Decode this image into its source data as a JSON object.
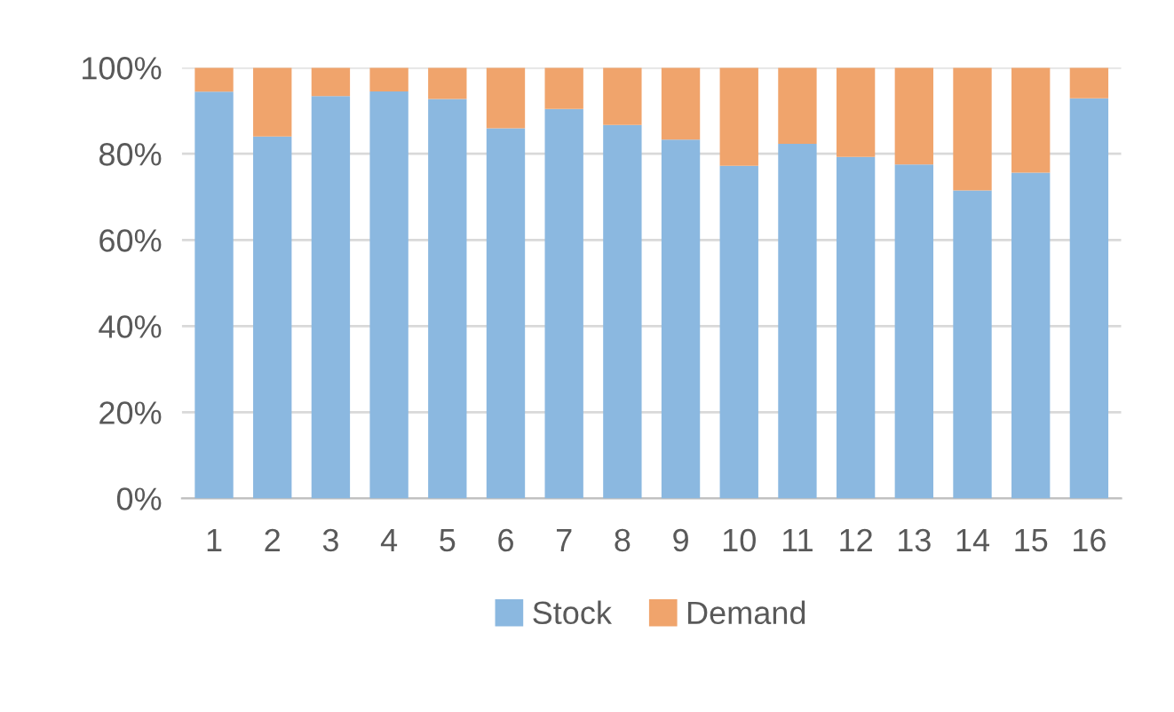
{
  "chart_data": {
    "type": "bar",
    "stacked": true,
    "categories": [
      "1",
      "2",
      "3",
      "4",
      "5",
      "6",
      "7",
      "8",
      "9",
      "10",
      "11",
      "12",
      "13",
      "14",
      "15",
      "16"
    ],
    "series": [
      {
        "name": "Stock",
        "color": "#8bb8e0",
        "values": [
          94.4,
          84,
          93.4,
          94.5,
          92.7,
          85.9,
          90.4,
          86.7,
          83.3,
          77.2,
          82.3,
          79.3,
          77.5,
          71.5,
          75.6,
          92.9
        ]
      },
      {
        "name": "Demand",
        "color": "#f0a46c",
        "values": [
          5.6,
          16,
          6.6,
          5.5,
          7.3,
          14.1,
          9.6,
          13.3,
          16.7,
          22.8,
          17.7,
          20.7,
          22.5,
          28.5,
          24.4,
          7.1
        ]
      }
    ],
    "ylim": [
      0,
      100
    ],
    "yticks": [
      {
        "value": 0,
        "label": "0%"
      },
      {
        "value": 20,
        "label": "20%"
      },
      {
        "value": 40,
        "label": "40%"
      },
      {
        "value": 60,
        "label": "60%"
      },
      {
        "value": 80,
        "label": "80%"
      },
      {
        "value": 100,
        "label": "100%"
      }
    ],
    "grid": "y",
    "legend": "bottom"
  }
}
